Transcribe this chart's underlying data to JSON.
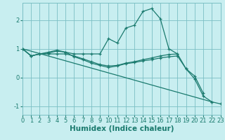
{
  "xlabel": "Humidex (Indice chaleur)",
  "bg_color": "#c8eef0",
  "grid_color": "#7bbfc4",
  "line_color": "#1a7a6e",
  "xlim": [
    0,
    23
  ],
  "ylim": [
    -1.3,
    2.6
  ],
  "line1_x": [
    0,
    1,
    2,
    3,
    4,
    5,
    6,
    7,
    8,
    9,
    10,
    11,
    12,
    13,
    14,
    15,
    16,
    17,
    18,
    19,
    20,
    21
  ],
  "line1_y": [
    1.0,
    0.75,
    0.82,
    0.85,
    0.92,
    0.88,
    0.82,
    0.82,
    0.82,
    0.82,
    1.35,
    1.2,
    1.72,
    1.82,
    2.3,
    2.4,
    2.05,
    1.0,
    0.82,
    0.3,
    0.05,
    -0.55
  ],
  "line2_x": [
    0,
    1,
    2,
    3,
    4,
    5,
    6,
    7,
    8,
    9,
    10,
    11,
    12,
    13,
    14,
    15,
    16,
    17,
    18
  ],
  "line2_y": [
    1.0,
    0.75,
    0.82,
    0.82,
    0.82,
    0.82,
    0.75,
    0.65,
    0.55,
    0.45,
    0.4,
    0.42,
    0.5,
    0.55,
    0.62,
    0.68,
    0.75,
    0.8,
    0.82
  ],
  "line3_x": [
    0,
    1,
    2,
    3,
    4,
    5,
    6,
    7,
    8,
    9,
    10,
    11,
    12,
    13,
    14,
    15,
    16,
    17,
    18,
    19,
    20,
    21,
    22
  ],
  "line3_y": [
    1.0,
    0.75,
    0.82,
    0.88,
    0.95,
    0.88,
    0.72,
    0.62,
    0.5,
    0.42,
    0.35,
    0.4,
    0.48,
    0.52,
    0.58,
    0.62,
    0.68,
    0.72,
    0.75,
    0.3,
    -0.05,
    -0.65,
    -0.85
  ],
  "line4_x": [
    0,
    22,
    23
  ],
  "line4_y": [
    1.0,
    -0.85,
    -0.92
  ],
  "xticks": [
    0,
    1,
    2,
    3,
    4,
    5,
    6,
    7,
    8,
    9,
    10,
    11,
    12,
    13,
    14,
    15,
    16,
    17,
    18,
    19,
    20,
    21,
    22,
    23
  ],
  "yticks": [
    -1,
    0,
    1,
    2
  ],
  "tick_fontsize": 6.0,
  "xlabel_fontsize": 7.5
}
